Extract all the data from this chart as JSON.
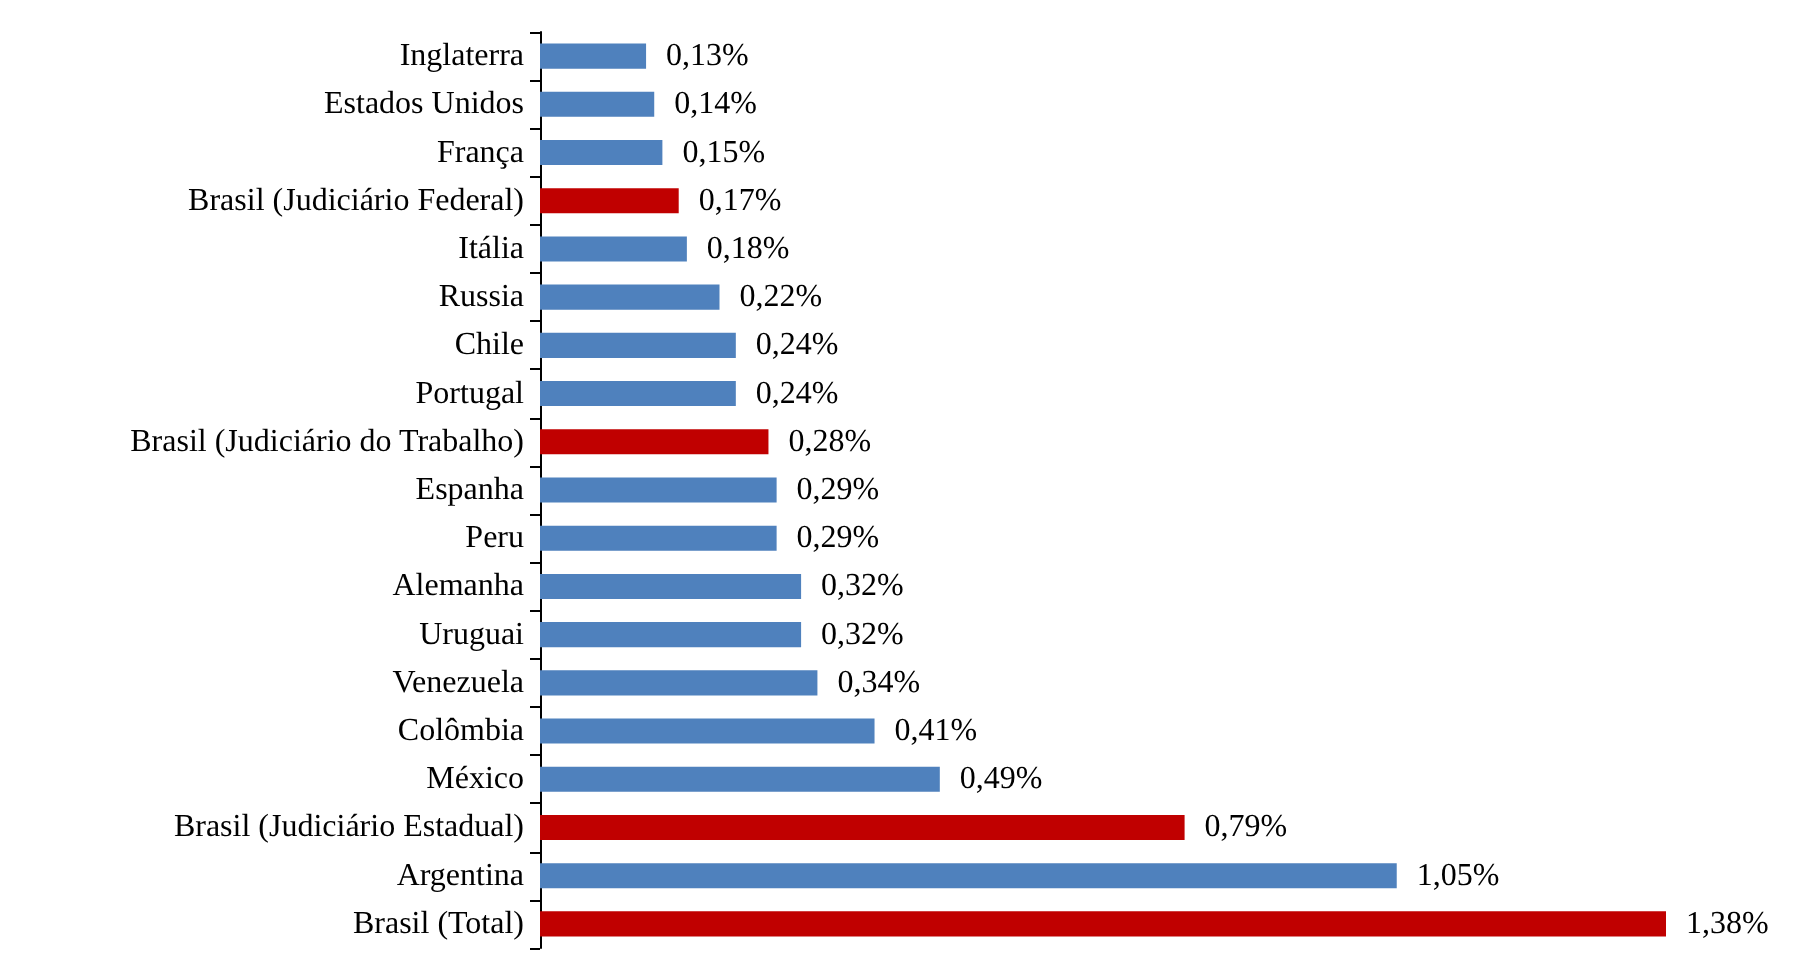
{
  "chart_data": {
    "type": "bar",
    "orientation": "horizontal",
    "categories": [
      "Inglaterra",
      "Estados Unidos",
      "França",
      "Brasil (Judiciário Federal)",
      "Itália",
      "Russia",
      "Chile",
      "Portugal",
      "Brasil (Judiciário do Trabalho)",
      "Espanha",
      "Peru",
      "Alemanha",
      "Uruguai",
      "Venezuela",
      "Colômbia",
      "México",
      "Brasil (Judiciário Estadual)",
      "Argentina",
      "Brasil (Total)"
    ],
    "values": [
      0.13,
      0.14,
      0.15,
      0.17,
      0.18,
      0.22,
      0.24,
      0.24,
      0.28,
      0.29,
      0.29,
      0.32,
      0.32,
      0.34,
      0.41,
      0.49,
      0.79,
      1.05,
      1.38
    ],
    "colors": [
      "#4f81bd",
      "#4f81bd",
      "#4f81bd",
      "#c00000",
      "#4f81bd",
      "#4f81bd",
      "#4f81bd",
      "#4f81bd",
      "#c00000",
      "#4f81bd",
      "#4f81bd",
      "#4f81bd",
      "#4f81bd",
      "#4f81bd",
      "#4f81bd",
      "#4f81bd",
      "#c00000",
      "#4f81bd",
      "#c00000"
    ],
    "value_labels": [
      "0,13%",
      "0,14%",
      "0,15%",
      "0,17%",
      "0,18%",
      "0,22%",
      "0,24%",
      "0,24%",
      "0,28%",
      "0,29%",
      "0,29%",
      "0,32%",
      "0,32%",
      "0,34%",
      "0,41%",
      "0,49%",
      "0,79%",
      "1,05%",
      "1,38%"
    ]
  }
}
